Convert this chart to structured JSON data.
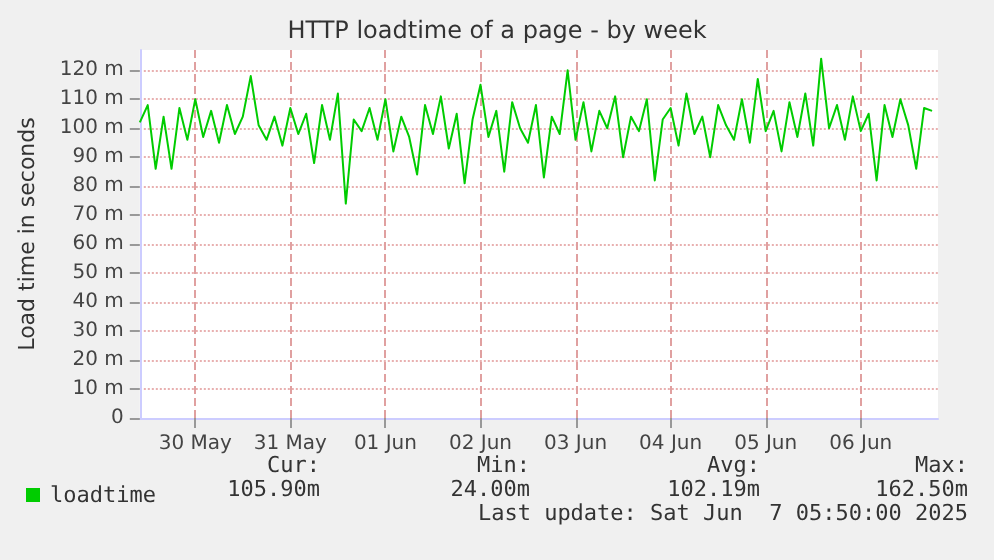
{
  "chart_data": {
    "type": "line",
    "title": "HTTP loadtime of a page - by week",
    "ylabel": "Load time in seconds",
    "x": [
      "2025-05-29T22:00",
      "2025-05-30T00:00",
      "2025-05-30T02:00",
      "2025-05-30T04:00",
      "2025-05-30T06:00",
      "2025-05-30T08:00",
      "2025-05-30T10:00",
      "2025-05-30T12:00",
      "2025-05-30T14:00",
      "2025-05-30T16:00",
      "2025-05-30T18:00",
      "2025-05-30T20:00",
      "2025-05-30T22:00",
      "2025-05-31T00:00",
      "2025-05-31T02:00",
      "2025-05-31T04:00",
      "2025-05-31T06:00",
      "2025-05-31T08:00",
      "2025-05-31T10:00",
      "2025-05-31T12:00",
      "2025-05-31T14:00",
      "2025-05-31T16:00",
      "2025-05-31T18:00",
      "2025-05-31T20:00",
      "2025-05-31T22:00",
      "2025-06-01T00:00",
      "2025-06-01T02:00",
      "2025-06-01T04:00",
      "2025-06-01T06:00",
      "2025-06-01T08:00",
      "2025-06-01T10:00",
      "2025-06-01T12:00",
      "2025-06-01T14:00",
      "2025-06-01T16:00",
      "2025-06-01T18:00",
      "2025-06-01T20:00",
      "2025-06-01T22:00",
      "2025-06-02T00:00",
      "2025-06-02T02:00",
      "2025-06-02T04:00",
      "2025-06-02T06:00",
      "2025-06-02T08:00",
      "2025-06-02T10:00",
      "2025-06-02T12:00",
      "2025-06-02T14:00",
      "2025-06-02T16:00",
      "2025-06-02T18:00",
      "2025-06-02T20:00",
      "2025-06-02T22:00",
      "2025-06-03T00:00",
      "2025-06-03T02:00",
      "2025-06-03T04:00",
      "2025-06-03T06:00",
      "2025-06-03T08:00",
      "2025-06-03T10:00",
      "2025-06-03T12:00",
      "2025-06-03T14:00",
      "2025-06-03T16:00",
      "2025-06-03T18:00",
      "2025-06-03T20:00",
      "2025-06-03T22:00",
      "2025-06-04T00:00",
      "2025-06-04T02:00",
      "2025-06-04T04:00",
      "2025-06-04T06:00",
      "2025-06-04T08:00",
      "2025-06-04T10:00",
      "2025-06-04T12:00",
      "2025-06-04T14:00",
      "2025-06-04T16:00",
      "2025-06-04T18:00",
      "2025-06-04T20:00",
      "2025-06-04T22:00",
      "2025-06-05T00:00",
      "2025-06-05T02:00",
      "2025-06-05T04:00",
      "2025-06-05T06:00",
      "2025-06-05T08:00",
      "2025-06-05T10:00",
      "2025-06-05T12:00",
      "2025-06-05T14:00",
      "2025-06-05T16:00",
      "2025-06-05T18:00",
      "2025-06-05T20:00",
      "2025-06-05T22:00",
      "2025-06-06T00:00",
      "2025-06-06T02:00",
      "2025-06-06T04:00",
      "2025-06-06T06:00",
      "2025-06-06T08:00",
      "2025-06-06T10:00",
      "2025-06-06T12:00",
      "2025-06-06T14:00",
      "2025-06-06T16:00",
      "2025-06-06T18:00",
      "2025-06-06T20:00",
      "2025-06-06T22:00",
      "2025-06-07T00:00",
      "2025-06-07T02:00",
      "2025-06-07T04:00",
      "2025-06-07T06:00"
    ],
    "series": [
      {
        "name": "loadtime",
        "color": "#00cc00",
        "values": [
          102,
          108,
          86,
          104,
          86,
          107,
          96,
          110,
          97,
          106,
          95,
          108,
          98,
          104,
          118,
          101,
          96,
          104,
          94,
          107,
          98,
          105,
          88,
          108,
          96,
          112,
          74,
          103,
          99,
          107,
          96,
          110,
          92,
          104,
          97,
          84,
          108,
          98,
          111,
          93,
          105,
          81,
          103,
          115,
          97,
          106,
          85,
          109,
          100,
          95,
          108,
          83,
          104,
          98,
          120,
          96,
          109,
          92,
          106,
          100,
          111,
          90,
          104,
          99,
          110,
          82,
          103,
          107,
          94,
          112,
          98,
          104,
          90,
          108,
          101,
          96,
          110,
          95,
          117,
          99,
          106,
          92,
          109,
          97,
          112,
          94,
          124,
          100,
          108,
          96,
          111,
          99,
          105,
          82,
          108,
          97,
          110,
          101,
          86,
          107,
          106
        ]
      }
    ],
    "xlim": [
      "2025-05-29T22:00",
      "2025-06-07T07:30"
    ],
    "xticks": [
      {
        "value": "2025-05-30T12:00",
        "label": "30 May"
      },
      {
        "value": "2025-05-31T12:00",
        "label": "31 May"
      },
      {
        "value": "2025-06-01T12:00",
        "label": "01 Jun"
      },
      {
        "value": "2025-06-02T12:00",
        "label": "02 Jun"
      },
      {
        "value": "2025-06-03T12:00",
        "label": "03 Jun"
      },
      {
        "value": "2025-06-04T12:00",
        "label": "04 Jun"
      },
      {
        "value": "2025-06-05T12:00",
        "label": "05 Jun"
      },
      {
        "value": "2025-06-06T12:00",
        "label": "06 Jun"
      }
    ],
    "ylim": [
      0,
      127
    ],
    "yticks": [
      0,
      {
        "value": 10,
        "label": "10 m"
      },
      {
        "value": 20,
        "label": "20 m"
      },
      {
        "value": 30,
        "label": "30 m"
      },
      {
        "value": 40,
        "label": "40 m"
      },
      {
        "value": 50,
        "label": "50 m"
      },
      {
        "value": 60,
        "label": "60 m"
      },
      {
        "value": 70,
        "label": "70 m"
      },
      {
        "value": 80,
        "label": "80 m"
      },
      {
        "value": 90,
        "label": "90 m"
      },
      {
        "value": 100,
        "label": "100 m"
      },
      {
        "value": 110,
        "label": "110 m"
      },
      {
        "value": 120,
        "label": "120 m"
      }
    ],
    "grid": true,
    "legend": "bottom left",
    "marker": "none",
    "line_style": "solid",
    "annotations": [
      "Cur:",
      "105.90m",
      "Min:",
      "24.00m",
      "Avg:",
      "102.19m",
      "Max:",
      "162.50m",
      "Last update: Sat Jun  7 05:50:00 2025"
    ]
  }
}
